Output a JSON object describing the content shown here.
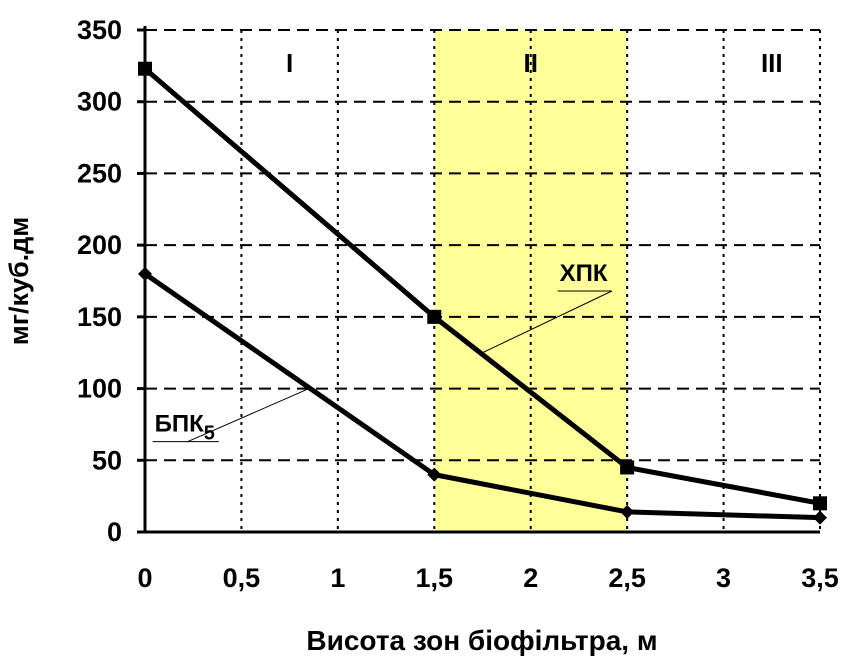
{
  "chart_data": {
    "type": "line",
    "xlabel": "Висота зон біофільтра, м",
    "ylabel": "мг/куб.дм",
    "xlim": [
      0,
      3.5
    ],
    "ylim": [
      0,
      350
    ],
    "x_ticks": [
      0,
      0.5,
      1,
      1.5,
      2,
      2.5,
      3,
      3.5
    ],
    "x_tick_labels": [
      "0",
      "0,5",
      "1",
      "1,5",
      "2",
      "2,5",
      "3",
      "3,5"
    ],
    "y_ticks": [
      0,
      50,
      100,
      150,
      200,
      250,
      300,
      350
    ],
    "y_tick_labels": [
      "0",
      "50",
      "100",
      "150",
      "200",
      "250",
      "300",
      "350"
    ],
    "grid": true,
    "highlight_band": {
      "x_from": 1.5,
      "x_to": 2.5,
      "color": "#ffff99"
    },
    "zones": [
      {
        "label": "I",
        "x": 0.75
      },
      {
        "label": "II",
        "x": 2.0
      },
      {
        "label": "III",
        "x": 3.25
      }
    ],
    "series": [
      {
        "name": "ХПК",
        "x": [
          0,
          1.5,
          2.5,
          3.5
        ],
        "y": [
          323,
          150,
          45,
          20
        ],
        "marker": "square",
        "label_at": {
          "x": 2.15,
          "y": 175
        },
        "leader_to": {
          "x": 1.75,
          "y": 125
        }
      },
      {
        "name": "БПК",
        "subscript": "5",
        "x": [
          0,
          1.5,
          2.5,
          3.5
        ],
        "y": [
          180,
          40,
          14,
          10
        ],
        "marker": "diamond",
        "label_at": {
          "x": 0.05,
          "y": 70
        },
        "leader_to": {
          "x": 0.85,
          "y": 100
        }
      }
    ],
    "colors": {
      "line": "#000000",
      "grid": "#000000",
      "band": "#ffff99"
    }
  }
}
